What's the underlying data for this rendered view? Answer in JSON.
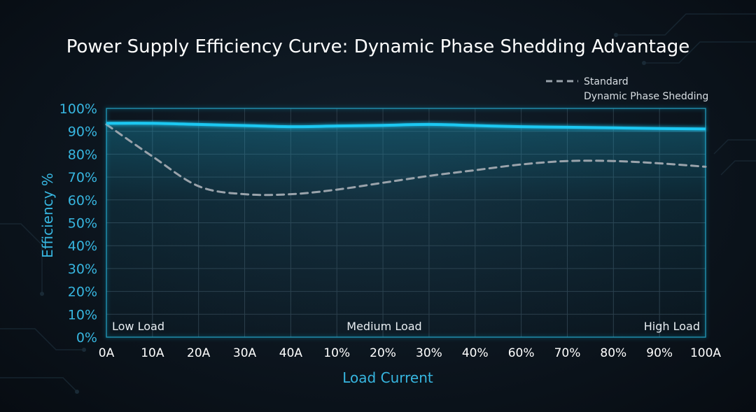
{
  "chart_data": {
    "type": "line",
    "title": "Power Supply Efficiency Curve: Dynamic Phase Shedding Advantage",
    "xlabel": "Load Current",
    "ylabel": "Efficiency %",
    "categories": [
      "0A",
      "10A",
      "20A",
      "30A",
      "40A",
      "10%",
      "20%",
      "30%",
      "40%",
      "60%",
      "70%",
      "80%",
      "90%",
      "100A"
    ],
    "yticks": [
      "0%",
      "10%",
      "20%",
      "30%",
      "40%",
      "50%",
      "60%",
      "70%",
      "80%",
      "90%",
      "100%"
    ],
    "ylim": [
      0,
      100
    ],
    "grid": true,
    "legend": "top-right",
    "series": [
      {
        "name": "Standard",
        "style": "dashed",
        "color": "#9aa3ab",
        "values": [
          93,
          79,
          66,
          62.5,
          62.5,
          64.5,
          67.5,
          70.5,
          73,
          75.5,
          77,
          77,
          76,
          74.5
        ]
      },
      {
        "name": "Dynamic Phase Shedding",
        "style": "solid",
        "color": "#1ec8f2",
        "values": [
          93.5,
          93.5,
          93,
          92.5,
          92,
          92.3,
          92.6,
          93,
          92.5,
          92,
          91.8,
          91.5,
          91.2,
          91
        ]
      }
    ],
    "annotations": {
      "low": "Low Load",
      "medium": "Medium Load",
      "high": "High Load"
    }
  },
  "colors": {
    "accent": "#1ec8f2",
    "axis_text": "#37b6e0",
    "grid": "#2c3b47",
    "standard": "#9aa3ab",
    "title": "#ffffff"
  }
}
